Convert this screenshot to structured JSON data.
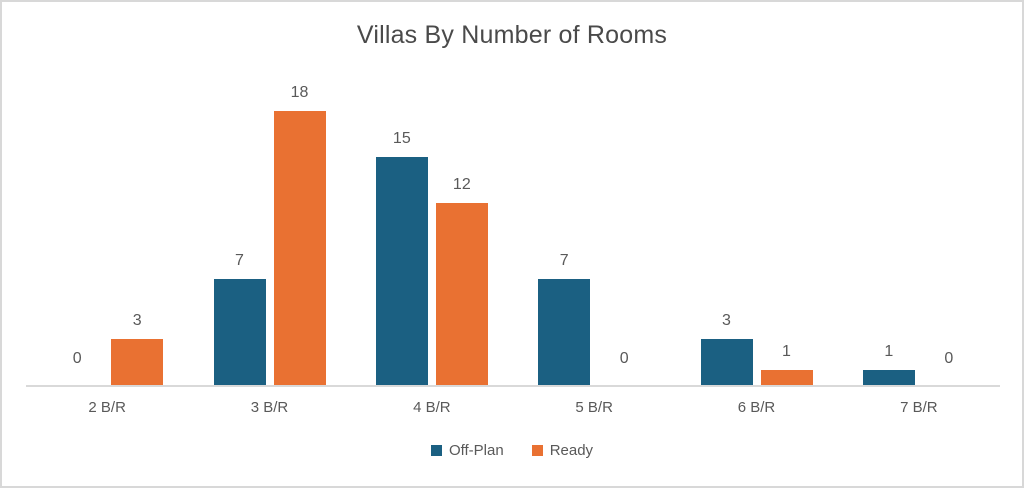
{
  "chart_data": {
    "type": "bar",
    "title": "Villas By Number of Rooms",
    "categories": [
      "2 B/R",
      "3 B/R",
      "4 B/R",
      "5 B/R",
      "6 B/R",
      "7 B/R"
    ],
    "series": [
      {
        "name": "Off-Plan",
        "color": "#1B6082",
        "values": [
          0,
          7,
          15,
          7,
          3,
          1
        ]
      },
      {
        "name": "Ready",
        "color": "#E97132",
        "values": [
          3,
          18,
          12,
          0,
          1,
          0
        ]
      }
    ],
    "value_labels": true,
    "grid": false,
    "legend_position": "bottom",
    "xlabel": "",
    "ylabel": "",
    "ylim": [
      0,
      20
    ]
  },
  "colors": {
    "background": "#FFFFFF",
    "frame_border": "#D8D8D8",
    "axis_line": "#D9D9D9",
    "title_text": "#4A4A4A",
    "label_text": "#595959"
  }
}
